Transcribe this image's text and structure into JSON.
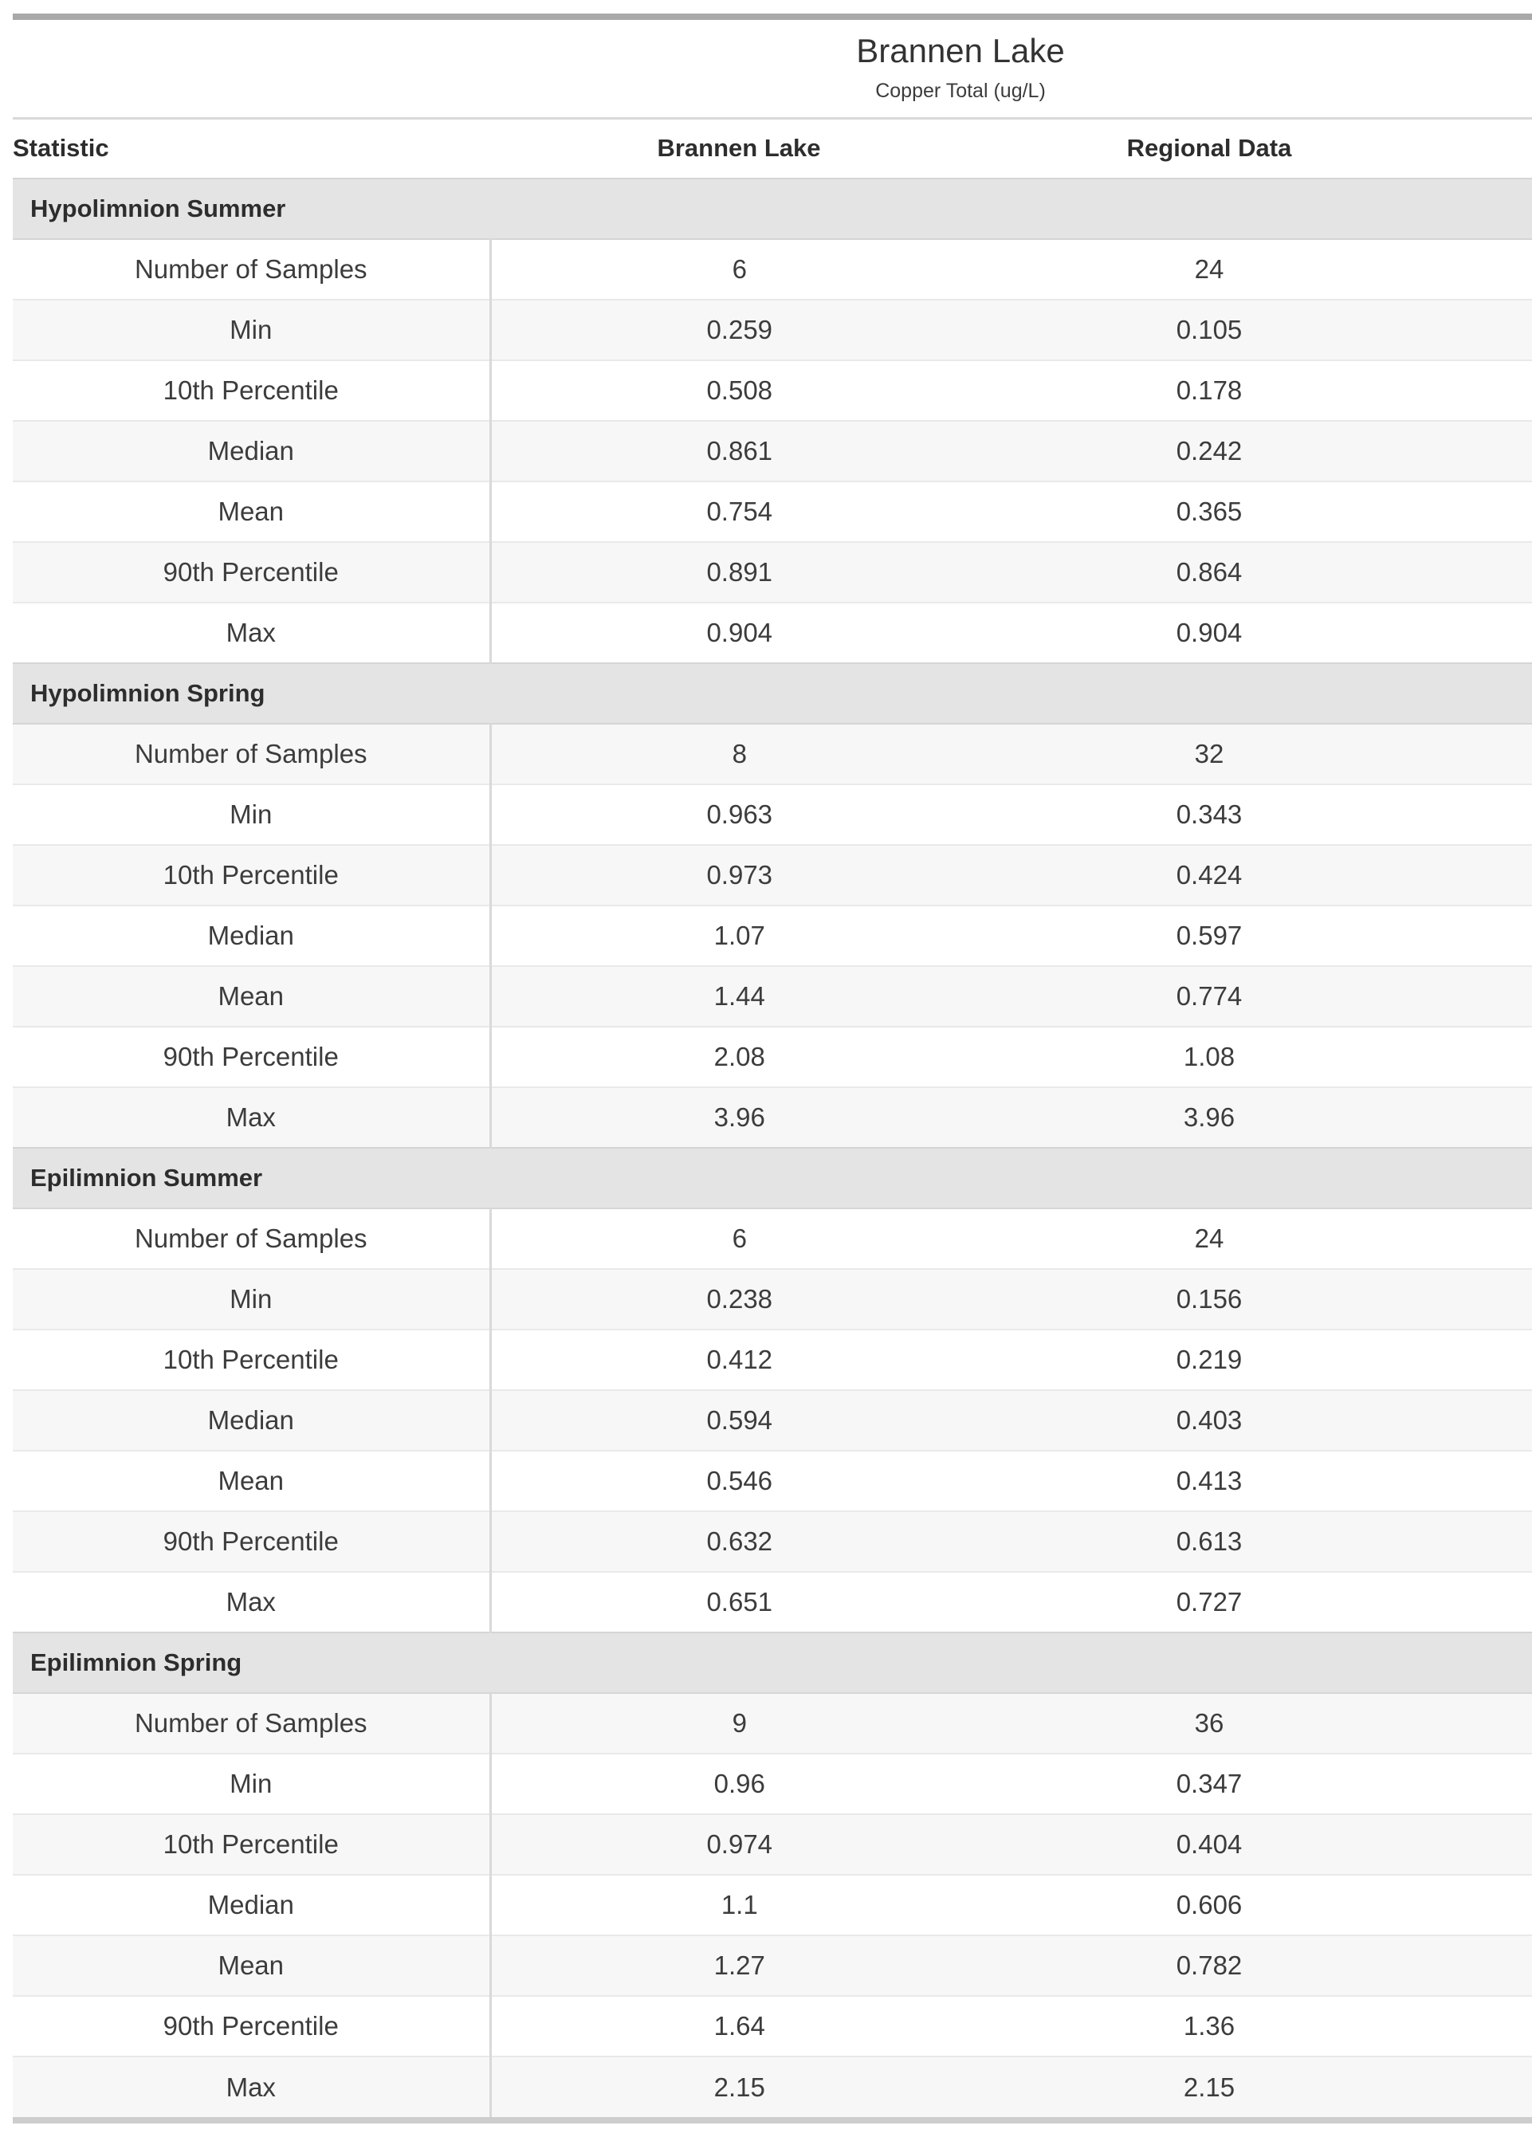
{
  "chart_data": {
    "type": "table",
    "title": "Brannen Lake",
    "subtitle": "Copper Total (ug/L)",
    "columns": [
      "Statistic",
      "Brannen Lake",
      "Regional Data"
    ],
    "row_labels": [
      "Number of Samples",
      "Min",
      "10th Percentile",
      "Median",
      "Mean",
      "90th Percentile",
      "Max"
    ],
    "sections": [
      {
        "name": "Hypolimnion Summer",
        "rows": [
          [
            "Number of Samples",
            "6",
            "24"
          ],
          [
            "Min",
            "0.259",
            "0.105"
          ],
          [
            "10th Percentile",
            "0.508",
            "0.178"
          ],
          [
            "Median",
            "0.861",
            "0.242"
          ],
          [
            "Mean",
            "0.754",
            "0.365"
          ],
          [
            "90th Percentile",
            "0.891",
            "0.864"
          ],
          [
            "Max",
            "0.904",
            "0.904"
          ]
        ]
      },
      {
        "name": "Hypolimnion Spring",
        "rows": [
          [
            "Number of Samples",
            "8",
            "32"
          ],
          [
            "Min",
            "0.963",
            "0.343"
          ],
          [
            "10th Percentile",
            "0.973",
            "0.424"
          ],
          [
            "Median",
            "1.07",
            "0.597"
          ],
          [
            "Mean",
            "1.44",
            "0.774"
          ],
          [
            "90th Percentile",
            "2.08",
            "1.08"
          ],
          [
            "Max",
            "3.96",
            "3.96"
          ]
        ]
      },
      {
        "name": "Epilimnion Summer",
        "rows": [
          [
            "Number of Samples",
            "6",
            "24"
          ],
          [
            "Min",
            "0.238",
            "0.156"
          ],
          [
            "10th Percentile",
            "0.412",
            "0.219"
          ],
          [
            "Median",
            "0.594",
            "0.403"
          ],
          [
            "Mean",
            "0.546",
            "0.413"
          ],
          [
            "90th Percentile",
            "0.632",
            "0.613"
          ],
          [
            "Max",
            "0.651",
            "0.727"
          ]
        ]
      },
      {
        "name": "Epilimnion Spring",
        "rows": [
          [
            "Number of Samples",
            "9",
            "36"
          ],
          [
            "Min",
            "0.96",
            "0.347"
          ],
          [
            "10th Percentile",
            "0.974",
            "0.404"
          ],
          [
            "Median",
            "1.1",
            "0.606"
          ],
          [
            "Mean",
            "1.27",
            "0.782"
          ],
          [
            "90th Percentile",
            "1.64",
            "1.36"
          ],
          [
            "Max",
            "2.15",
            "2.15"
          ]
        ]
      }
    ],
    "layout": {
      "striped": true,
      "stripe_color": "#f7f7f7",
      "section_band_color": "#e4e4e4",
      "top_rule_color": "#a9a9a9",
      "bottom_rule_color": "#cdcdcd",
      "divider_color": "#d9d9d9"
    }
  }
}
